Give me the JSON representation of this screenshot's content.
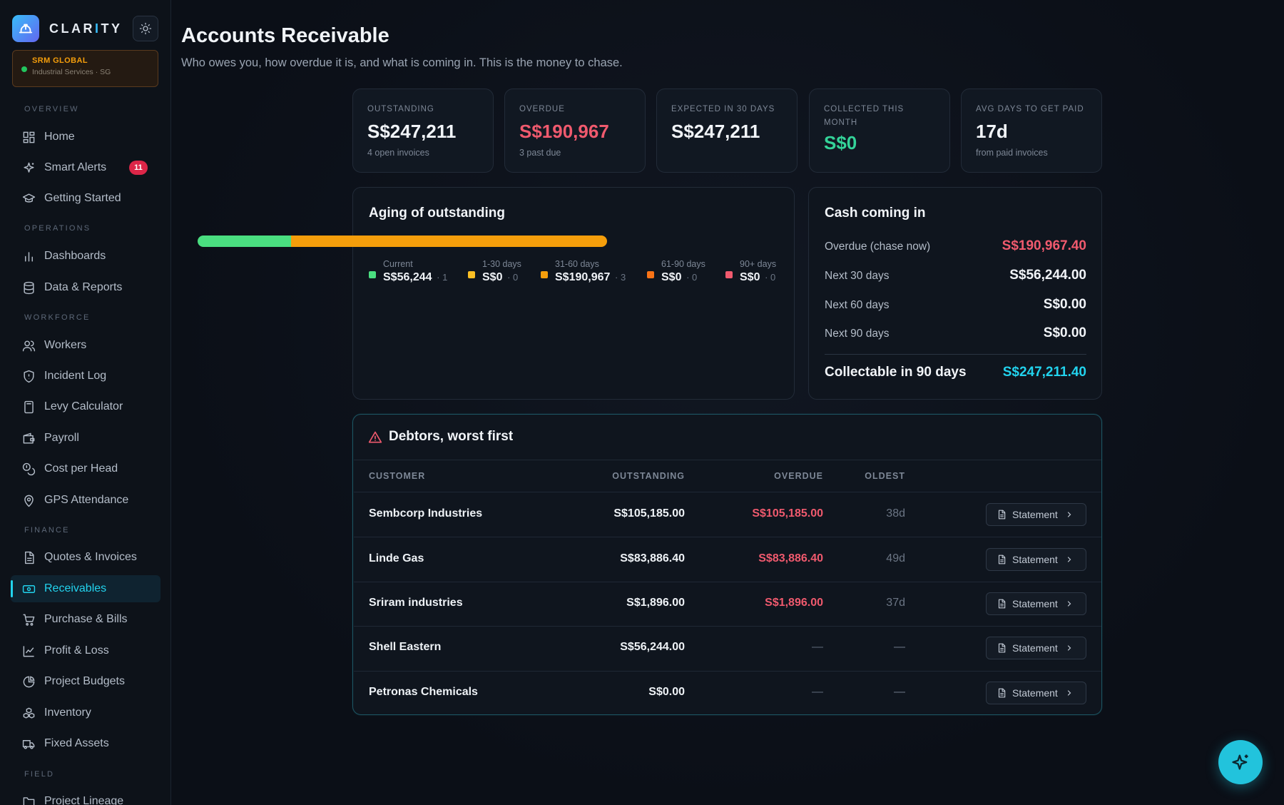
{
  "brand": {
    "name_main": "CLAR",
    "name_accent": "I",
    "name_tail": "TY",
    "logo_icon": "hardhat-icon"
  },
  "org": {
    "name": "SRM GLOBAL",
    "subtitle": "Industrial Services · SG"
  },
  "sidebar": {
    "sections": [
      {
        "title": "OVERVIEW"
      },
      {
        "title": "OPERATIONS"
      },
      {
        "title": "WORKFORCE"
      },
      {
        "title": "FINANCE"
      },
      {
        "title": "FIELD"
      }
    ],
    "items": [
      {
        "label": "Home",
        "icon": "grid-icon"
      },
      {
        "label": "Smart Alerts",
        "icon": "sparkle-icon",
        "badge": "11"
      },
      {
        "label": "Getting Started",
        "icon": "graduation-cap-icon"
      },
      {
        "label": "Dashboards",
        "icon": "bar-chart-icon"
      },
      {
        "label": "Data & Reports",
        "icon": "database-icon"
      },
      {
        "label": "Workers",
        "icon": "users-icon"
      },
      {
        "label": "Incident Log",
        "icon": "shield-icon"
      },
      {
        "label": "Levy Calculator",
        "icon": "calculator-icon"
      },
      {
        "label": "Payroll",
        "icon": "wallet-icon"
      },
      {
        "label": "Cost per Head",
        "icon": "coins-icon"
      },
      {
        "label": "GPS Attendance",
        "icon": "map-pin-icon"
      },
      {
        "label": "Quotes & Invoices",
        "icon": "file-text-icon"
      },
      {
        "label": "Receivables",
        "icon": "banknote-icon",
        "active": true
      },
      {
        "label": "Purchase & Bills",
        "icon": "cart-icon"
      },
      {
        "label": "Profit & Loss",
        "icon": "line-chart-icon"
      },
      {
        "label": "Project Budgets",
        "icon": "pie-chart-icon"
      },
      {
        "label": "Inventory",
        "icon": "boxes-icon"
      },
      {
        "label": "Fixed Assets",
        "icon": "truck-icon"
      },
      {
        "label": "Project Lineage",
        "icon": "folder-icon"
      }
    ]
  },
  "header": {
    "title": "Accounts Receivable",
    "subtitle": "Who owes you, how overdue it is, and what is coming in. This is the money to chase."
  },
  "kpis": [
    {
      "label": "OUTSTANDING",
      "value": "S$247,211",
      "sub": "4 open invoices",
      "tone": "default"
    },
    {
      "label": "OVERDUE",
      "value": "S$190,967",
      "sub": "3 past due",
      "tone": "red"
    },
    {
      "label": "EXPECTED IN 30 DAYS",
      "value": "S$247,211",
      "sub": "",
      "tone": "default"
    },
    {
      "label": "COLLECTED THIS MONTH",
      "value": "S$0",
      "sub": "",
      "tone": "green"
    },
    {
      "label": "AVG DAYS TO GET PAID",
      "value": "17d",
      "sub": "from paid invoices",
      "tone": "default"
    }
  ],
  "aging": {
    "title": "Aging of outstanding",
    "buckets": [
      {
        "label": "Current",
        "amount": "S$56,244",
        "count": "1",
        "share": 0.2275,
        "color": "#4ade80"
      },
      {
        "label": "1-30 days",
        "amount": "S$0",
        "count": "0",
        "share": 0,
        "color": "#fbbf24"
      },
      {
        "label": "31-60 days",
        "amount": "S$190,967",
        "count": "3",
        "share": 0.7725,
        "color": "#f59e0b"
      },
      {
        "label": "61-90 days",
        "amount": "S$0",
        "count": "0",
        "share": 0,
        "color": "#f97316"
      },
      {
        "label": "90+ days",
        "amount": "S$0",
        "count": "0",
        "share": 0,
        "color": "#f05a6e"
      }
    ]
  },
  "cash": {
    "title": "Cash coming in",
    "rows": [
      {
        "label": "Overdue (chase now)",
        "value": "S$190,967.40",
        "tone": "red"
      },
      {
        "label": "Next 30 days",
        "value": "S$56,244.00",
        "tone": "default"
      },
      {
        "label": "Next 60 days",
        "value": "S$0.00",
        "tone": "default"
      },
      {
        "label": "Next 90 days",
        "value": "S$0.00",
        "tone": "default"
      }
    ],
    "total_label": "Collectable in 90 days",
    "total_value": "S$247,211.40"
  },
  "debtors": {
    "title": "Debtors, worst first",
    "title_icon": "alert-triangle-icon",
    "columns": {
      "customer": "CUSTOMER",
      "outstanding": "OUTSTANDING",
      "overdue": "OVERDUE",
      "oldest": "OLDEST"
    },
    "action_label": "Statement",
    "rows": [
      {
        "customer": "Sembcorp Industries",
        "outstanding": "S$105,185.00",
        "overdue": "S$105,185.00",
        "oldest": "38d"
      },
      {
        "customer": "Linde Gas",
        "outstanding": "S$83,886.40",
        "overdue": "S$83,886.40",
        "oldest": "49d"
      },
      {
        "customer": "Sriram industries",
        "outstanding": "S$1,896.00",
        "overdue": "S$1,896.00",
        "oldest": "37d"
      },
      {
        "customer": "Shell Eastern",
        "outstanding": "S$56,244.00",
        "overdue": "—",
        "oldest": "—"
      },
      {
        "customer": "Petronas Chemicals",
        "outstanding": "S$0.00",
        "overdue": "—",
        "oldest": "—"
      }
    ]
  },
  "fab": {
    "icon": "sparkle-icon"
  }
}
